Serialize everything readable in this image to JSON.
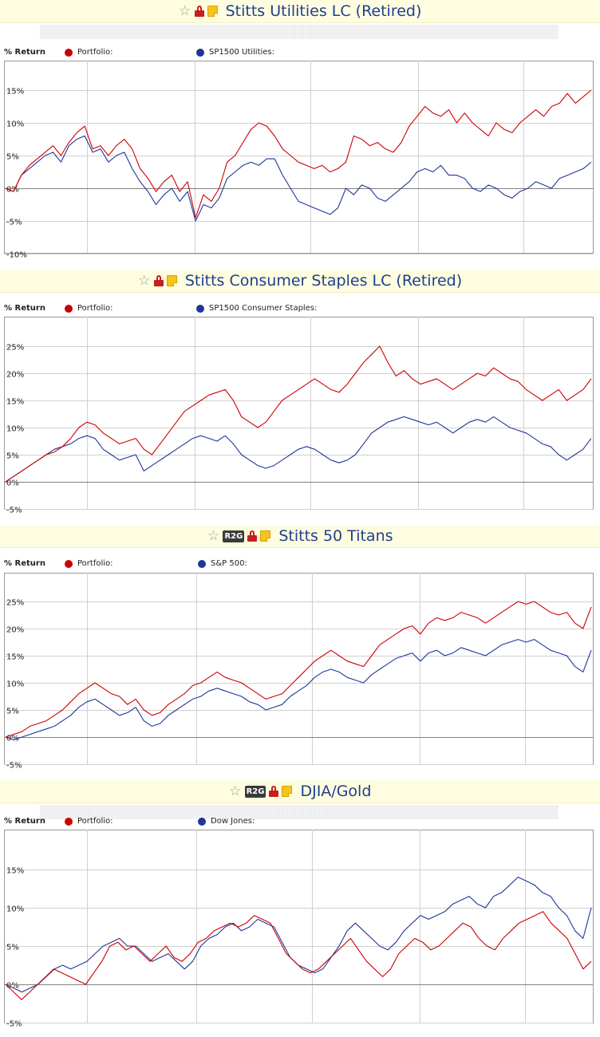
{
  "colors": {
    "portfolio": "#cc0000",
    "benchmark": "#1f3599",
    "grid": "#d0d0d0",
    "zero_line": "#808080"
  },
  "chart_data": [
    {
      "type": "line",
      "title": "Stitts Utilities LC (Retired)",
      "icons": [
        "star-icon",
        "lock-icon",
        "note-icon"
      ],
      "legend_label": "% Return",
      "yticks": [
        15,
        10,
        5,
        0,
        -5,
        -10
      ],
      "ytick_labels": [
        "15%",
        "10%",
        "5%",
        "0%",
        "-5%",
        "-10%"
      ],
      "ylim": [
        -10,
        20
      ],
      "series": [
        {
          "name": "Portfolio:",
          "color": "#cc0000",
          "values": [
            0,
            -0.5,
            2,
            3.5,
            4.5,
            5.5,
            6.5,
            5,
            7,
            8.5,
            9.5,
            6,
            6.5,
            5,
            6.5,
            7.5,
            6,
            3,
            1.5,
            -0.5,
            1,
            2,
            -0.5,
            1,
            -4.5,
            -1,
            -2,
            0,
            4,
            5,
            7,
            9,
            10,
            9.5,
            8,
            6,
            5,
            4,
            3.5,
            3,
            3.5,
            2.5,
            3,
            4,
            8,
            7.5,
            6.5,
            7,
            6,
            5.5,
            7,
            9.5,
            11,
            12.5,
            11.5,
            11,
            12,
            10,
            11.5,
            10,
            9,
            8,
            10,
            9,
            8.5,
            10,
            11,
            12,
            11,
            12.5,
            13,
            14.5,
            13,
            14,
            15
          ]
        },
        {
          "name": "SP1500 Utilities:",
          "color": "#1f3599",
          "values": [
            0,
            -0.5,
            2,
            3,
            4,
            5,
            5.5,
            4,
            6.5,
            7.5,
            8,
            5.5,
            6,
            4,
            5,
            5.5,
            3,
            1,
            -0.5,
            -2.5,
            -1,
            0,
            -2,
            -0.5,
            -5,
            -2.5,
            -3,
            -1.5,
            1.5,
            2.5,
            3.5,
            4,
            3.5,
            4.5,
            4.5,
            2,
            0,
            -2,
            -2.5,
            -3,
            -3.5,
            -4,
            -3,
            0,
            -1,
            0.5,
            0,
            -1.5,
            -2,
            -1,
            0,
            1,
            2.5,
            3,
            2.5,
            3.5,
            2,
            2,
            1.5,
            0,
            -0.5,
            0.5,
            0,
            -1,
            -1.5,
            -0.5,
            0,
            1,
            0.5,
            0,
            1.5,
            2,
            2.5,
            3,
            4
          ]
        }
      ]
    },
    {
      "type": "line",
      "title": "Stitts Consumer Staples LC (Retired)",
      "icons": [
        "star-icon",
        "lock-icon",
        "note-icon"
      ],
      "legend_label": "% Return",
      "yticks": [
        25,
        20,
        15,
        10,
        5,
        0,
        -5
      ],
      "ytick_labels": [
        "25%",
        "20%",
        "15%",
        "10%",
        "5%",
        "0%",
        "-5%"
      ],
      "ylim": [
        -5,
        30
      ],
      "series": [
        {
          "name": "Portfolio:",
          "color": "#cc0000",
          "values": [
            0,
            1,
            2,
            3,
            4,
            5,
            5.5,
            6.5,
            8,
            10,
            11,
            10.5,
            9,
            8,
            7,
            7.5,
            8,
            6,
            5,
            7,
            9,
            11,
            13,
            14,
            15,
            16,
            16.5,
            17,
            15,
            12,
            11,
            10,
            11,
            13,
            15,
            16,
            17,
            18,
            19,
            18,
            17,
            16.5,
            18,
            20,
            22,
            23.5,
            25,
            22,
            19.5,
            20.5,
            19,
            18,
            18.5,
            19,
            18,
            17,
            18,
            19,
            20,
            19.5,
            21,
            20,
            19,
            18.5,
            17,
            16,
            15,
            16,
            17,
            15,
            16,
            17,
            19
          ]
        },
        {
          "name": "SP1500 Consumer Staples:",
          "color": "#1f3599",
          "values": [
            0,
            1,
            2,
            3,
            4,
            5,
            6,
            6.5,
            7,
            8,
            8.5,
            8,
            6,
            5,
            4,
            4.5,
            5,
            2,
            3,
            4,
            5,
            6,
            7,
            8,
            8.5,
            8,
            7.5,
            8.5,
            7,
            5,
            4,
            3,
            2.5,
            3,
            4,
            5,
            6,
            6.5,
            6,
            5,
            4,
            3.5,
            4,
            5,
            7,
            9,
            10,
            11,
            11.5,
            12,
            11.5,
            11,
            10.5,
            11,
            10,
            9,
            10,
            11,
            11.5,
            11,
            12,
            11,
            10,
            9.5,
            9,
            8,
            7,
            6.5,
            5,
            4,
            5,
            6,
            8
          ]
        }
      ]
    },
    {
      "type": "line",
      "title": "Stitts 50 Titans",
      "icons": [
        "star-icon",
        "r2g-icon",
        "lock-icon",
        "note-icon"
      ],
      "r2g_label": "R2G",
      "legend_label": "% Return",
      "yticks": [
        25,
        20,
        15,
        10,
        5,
        0,
        -5
      ],
      "ytick_labels": [
        "25%",
        "20%",
        "15%",
        "10%",
        "5%",
        "0%",
        "-5%"
      ],
      "ylim": [
        -5,
        30
      ],
      "series": [
        {
          "name": "Portfolio:",
          "color": "#cc0000",
          "values": [
            0,
            0.5,
            1,
            2,
            2.5,
            3,
            4,
            5,
            6.5,
            8,
            9,
            10,
            9,
            8,
            7.5,
            6,
            7,
            5,
            4,
            4.5,
            6,
            7,
            8,
            9.5,
            10,
            11,
            12,
            11,
            10.5,
            10,
            9,
            8,
            7,
            7.5,
            8,
            9.5,
            11,
            12.5,
            14,
            15,
            16,
            15,
            14,
            13.5,
            13,
            15,
            17,
            18,
            19,
            20,
            20.5,
            19,
            21,
            22,
            21.5,
            22,
            23,
            22.5,
            22,
            21,
            22,
            23,
            24,
            25,
            24.5,
            25,
            24,
            23,
            22.5,
            23,
            21,
            20,
            24
          ]
        },
        {
          "name": "S&P 500:",
          "color": "#1f3599",
          "values": [
            0,
            -0.5,
            0,
            0.5,
            1,
            1.5,
            2,
            3,
            4,
            5.5,
            6.5,
            7,
            6,
            5,
            4,
            4.5,
            5.5,
            3,
            2,
            2.5,
            4,
            5,
            6,
            7,
            7.5,
            8.5,
            9,
            8.5,
            8,
            7.5,
            6.5,
            6,
            5,
            5.5,
            6,
            7.5,
            8.5,
            9.5,
            11,
            12,
            12.5,
            12,
            11,
            10.5,
            10,
            11.5,
            12.5,
            13.5,
            14.5,
            15,
            15.5,
            14,
            15.5,
            16,
            15,
            15.5,
            16.5,
            16,
            15.5,
            15,
            16,
            17,
            17.5,
            18,
            17.5,
            18,
            17,
            16,
            15.5,
            15,
            13,
            12,
            16
          ]
        }
      ]
    },
    {
      "type": "line",
      "title": "DJIA/Gold",
      "icons": [
        "star-icon",
        "r2g-icon",
        "lock-icon",
        "note-icon"
      ],
      "r2g_label": "R2G",
      "legend_label": "% Return",
      "yticks": [
        15,
        10,
        5,
        0,
        -5
      ],
      "ytick_labels": [
        "15%",
        "10%",
        "5%",
        "0%",
        "-5%"
      ],
      "ylim": [
        -5,
        20
      ],
      "series": [
        {
          "name": "Portfolio:",
          "color": "#cc0000",
          "values": [
            0,
            -1,
            -2,
            -1,
            0,
            1,
            2,
            1.5,
            1,
            0.5,
            0,
            1.5,
            3,
            5,
            5.5,
            4.5,
            5,
            4,
            3,
            4,
            5,
            3.5,
            3,
            4,
            5.5,
            6,
            7,
            7.5,
            8,
            7.5,
            8,
            9,
            8.5,
            8,
            6,
            4,
            3,
            2,
            1.5,
            2,
            3,
            4,
            5,
            6,
            4.5,
            3,
            2,
            1,
            2,
            4,
            5,
            6,
            5.5,
            4.5,
            5,
            6,
            7,
            8,
            7.5,
            6,
            5,
            4.5,
            6,
            7,
            8,
            8.5,
            9,
            9.5,
            8,
            7,
            6,
            4,
            2,
            3
          ]
        },
        {
          "name": "Dow Jones:",
          "color": "#1f3599",
          "values": [
            0,
            -0.5,
            -1,
            -0.5,
            0,
            1,
            2,
            2.5,
            2,
            2.5,
            3,
            4,
            5,
            5.5,
            6,
            5,
            5,
            4,
            3,
            3.5,
            4,
            3,
            2,
            3,
            5,
            6,
            6.5,
            7.5,
            8,
            7,
            7.5,
            8.5,
            8,
            7.5,
            5.5,
            3.5,
            2.5,
            2,
            1.5,
            2,
            3.5,
            5,
            7,
            8,
            7,
            6,
            5,
            4.5,
            5.5,
            7,
            8,
            9,
            8.5,
            9,
            9.5,
            10.5,
            11,
            11.5,
            10.5,
            10,
            11.5,
            12,
            13,
            14,
            13.5,
            13,
            12,
            11.5,
            10,
            9,
            7,
            6,
            10
          ]
        }
      ]
    }
  ]
}
